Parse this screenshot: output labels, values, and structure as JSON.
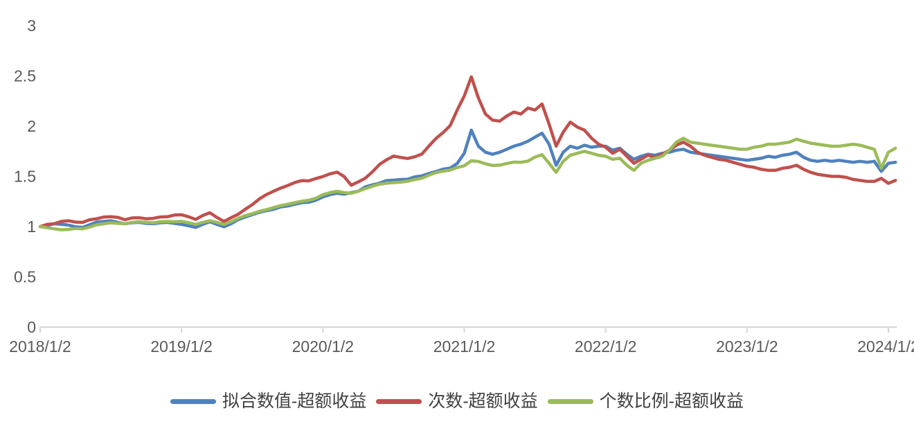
{
  "chart_data": {
    "type": "line",
    "title": "",
    "x_axis": {
      "label": "",
      "tick_labels": [
        "2018/1/2",
        "2019/1/2",
        "2020/1/2",
        "2021/1/2",
        "2022/1/2",
        "2023/1/2",
        "2024/1/2"
      ],
      "tick_values_years": [
        0,
        1,
        2,
        3,
        4,
        5,
        6
      ]
    },
    "y_axis": {
      "label": "",
      "tick_labels": [
        "0",
        "0.5",
        "1",
        "1.5",
        "2",
        "2.5",
        "3"
      ],
      "tick_values": [
        0,
        0.5,
        1,
        1.5,
        2,
        2.5,
        3
      ],
      "range": [
        0,
        3
      ]
    },
    "grid": "off",
    "legend_position": "bottom",
    "axis_color": "#d6d6d6",
    "tick_text_color": "#595959",
    "legend_text_color": "#3f3f3f",
    "sampling": {
      "start_year_offset": 0,
      "step_years": 0.05,
      "x_unit": "years since 2018/1/2"
    },
    "series": [
      {
        "name": "拟合数值-超额收益",
        "color": "#4F81BD",
        "values": [
          1.0,
          1.012,
          1.028,
          1.022,
          1.015,
          0.998,
          0.992,
          1.018,
          1.045,
          1.052,
          1.058,
          1.042,
          1.028,
          1.038,
          1.042,
          1.032,
          1.028,
          1.038,
          1.042,
          1.032,
          1.022,
          1.008,
          0.992,
          1.022,
          1.048,
          1.022,
          0.998,
          1.028,
          1.068,
          1.095,
          1.118,
          1.142,
          1.158,
          1.172,
          1.195,
          1.205,
          1.222,
          1.238,
          1.242,
          1.262,
          1.295,
          1.318,
          1.332,
          1.322,
          1.338,
          1.352,
          1.395,
          1.415,
          1.432,
          1.458,
          1.462,
          1.468,
          1.472,
          1.495,
          1.505,
          1.528,
          1.548,
          1.572,
          1.582,
          1.628,
          1.73,
          1.96,
          1.8,
          1.74,
          1.72,
          1.74,
          1.77,
          1.8,
          1.82,
          1.85,
          1.89,
          1.93,
          1.82,
          1.61,
          1.74,
          1.8,
          1.78,
          1.81,
          1.79,
          1.8,
          1.8,
          1.76,
          1.78,
          1.72,
          1.67,
          1.7,
          1.72,
          1.71,
          1.73,
          1.74,
          1.76,
          1.77,
          1.74,
          1.73,
          1.72,
          1.71,
          1.7,
          1.69,
          1.68,
          1.67,
          1.66,
          1.67,
          1.68,
          1.7,
          1.69,
          1.71,
          1.72,
          1.74,
          1.69,
          1.66,
          1.65,
          1.66,
          1.65,
          1.66,
          1.65,
          1.64,
          1.65,
          1.64,
          1.65,
          1.55,
          1.63,
          1.64
        ]
      },
      {
        "name": "次数-超额收益",
        "color": "#C0504D",
        "values": [
          1.0,
          1.022,
          1.028,
          1.052,
          1.058,
          1.045,
          1.042,
          1.068,
          1.078,
          1.095,
          1.098,
          1.092,
          1.068,
          1.086,
          1.088,
          1.078,
          1.082,
          1.096,
          1.098,
          1.115,
          1.118,
          1.098,
          1.072,
          1.11,
          1.138,
          1.092,
          1.052,
          1.088,
          1.122,
          1.172,
          1.218,
          1.275,
          1.318,
          1.352,
          1.382,
          1.408,
          1.438,
          1.458,
          1.455,
          1.478,
          1.498,
          1.525,
          1.542,
          1.498,
          1.412,
          1.445,
          1.482,
          1.545,
          1.618,
          1.665,
          1.702,
          1.688,
          1.678,
          1.695,
          1.722,
          1.802,
          1.878,
          1.935,
          2.005,
          2.16,
          2.3,
          2.49,
          2.28,
          2.12,
          2.06,
          2.05,
          2.1,
          2.14,
          2.12,
          2.18,
          2.16,
          2.22,
          2.02,
          1.8,
          1.94,
          2.04,
          1.99,
          1.96,
          1.88,
          1.82,
          1.79,
          1.73,
          1.77,
          1.7,
          1.63,
          1.67,
          1.71,
          1.69,
          1.72,
          1.76,
          1.81,
          1.84,
          1.8,
          1.74,
          1.71,
          1.69,
          1.67,
          1.66,
          1.64,
          1.62,
          1.6,
          1.59,
          1.57,
          1.56,
          1.56,
          1.58,
          1.59,
          1.61,
          1.57,
          1.54,
          1.52,
          1.51,
          1.5,
          1.5,
          1.49,
          1.47,
          1.46,
          1.45,
          1.45,
          1.48,
          1.43,
          1.46
        ]
      },
      {
        "name": "个数比例-超额收益",
        "color": "#9BBB59",
        "values": [
          1.0,
          0.988,
          0.978,
          0.968,
          0.972,
          0.982,
          0.978,
          0.995,
          1.018,
          1.028,
          1.038,
          1.032,
          1.028,
          1.042,
          1.048,
          1.042,
          1.038,
          1.048,
          1.052,
          1.048,
          1.052,
          1.038,
          1.022,
          1.042,
          1.058,
          1.042,
          1.022,
          1.048,
          1.082,
          1.108,
          1.128,
          1.152,
          1.168,
          1.188,
          1.208,
          1.222,
          1.238,
          1.252,
          1.262,
          1.282,
          1.318,
          1.338,
          1.352,
          1.338,
          1.332,
          1.352,
          1.378,
          1.402,
          1.422,
          1.432,
          1.438,
          1.442,
          1.452,
          1.468,
          1.482,
          1.512,
          1.538,
          1.552,
          1.562,
          1.588,
          1.605,
          1.655,
          1.648,
          1.625,
          1.608,
          1.612,
          1.628,
          1.642,
          1.64,
          1.652,
          1.692,
          1.715,
          1.63,
          1.54,
          1.65,
          1.71,
          1.73,
          1.75,
          1.73,
          1.71,
          1.7,
          1.67,
          1.68,
          1.61,
          1.56,
          1.63,
          1.66,
          1.68,
          1.7,
          1.76,
          1.84,
          1.88,
          1.84,
          1.83,
          1.82,
          1.81,
          1.8,
          1.79,
          1.78,
          1.77,
          1.77,
          1.79,
          1.8,
          1.82,
          1.82,
          1.83,
          1.84,
          1.87,
          1.85,
          1.83,
          1.82,
          1.81,
          1.8,
          1.8,
          1.81,
          1.82,
          1.81,
          1.79,
          1.77,
          1.58,
          1.74,
          1.78
        ]
      }
    ]
  }
}
